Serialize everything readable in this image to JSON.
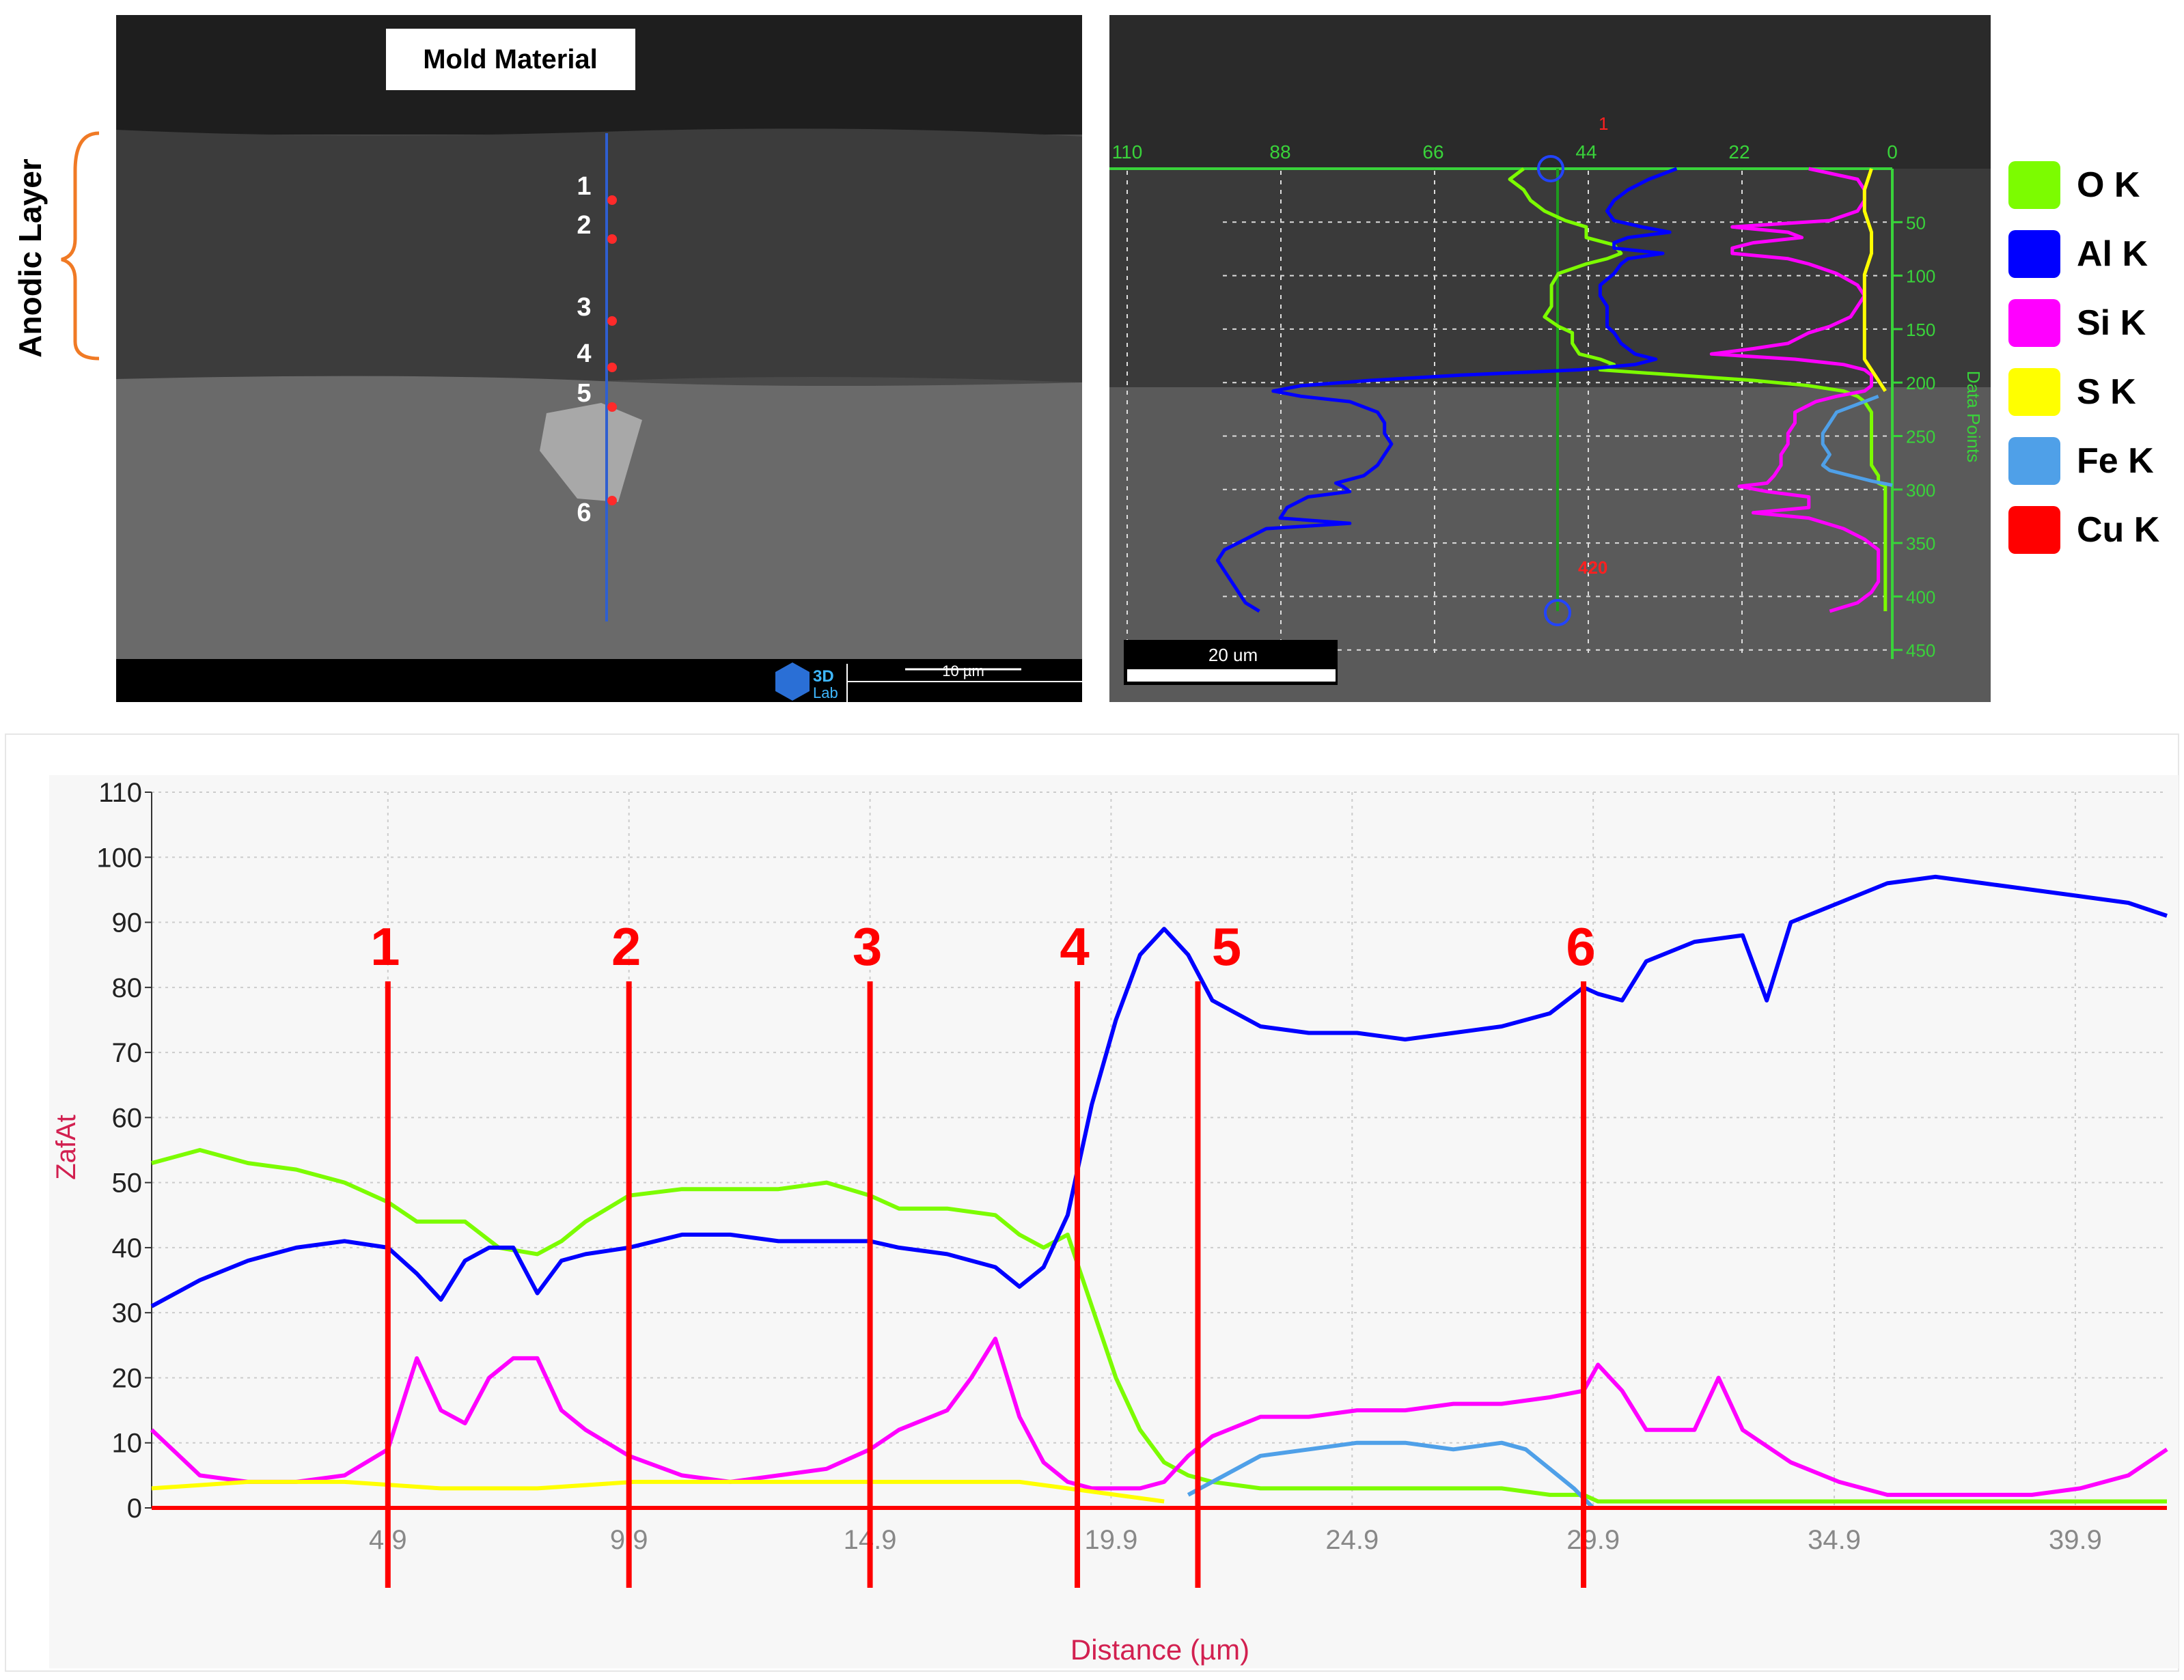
{
  "sem_panel": {
    "mold_label": "Mold Material",
    "side_label": "Anodic Layer",
    "points": [
      "1",
      "2",
      "3",
      "4",
      "5",
      "6"
    ],
    "scale_bar_label": "10 µm",
    "logo_text_top": "3D",
    "logo_text_bottom": "Lab"
  },
  "linescan_panel": {
    "top_ticks": [
      "110",
      "88",
      "66",
      "44",
      "22",
      "0"
    ],
    "right_ticks": [
      "50",
      "100",
      "150",
      "200",
      "250",
      "300",
      "350",
      "400",
      "450"
    ],
    "right_axis_label": "Data Points",
    "scale_bar_label": "20 um",
    "marker_top": "1",
    "marker_bottom": "420"
  },
  "legend": {
    "items": [
      {
        "label": "O  K",
        "color": "#7CFC00"
      },
      {
        "label": "Al K",
        "color": "#0000FF"
      },
      {
        "label": "Si K",
        "color": "#FF00FF"
      },
      {
        "label": "S  K",
        "color": "#FFFF00"
      },
      {
        "label": "Fe K",
        "color": "#4FA0E8"
      },
      {
        "label": "Cu K",
        "color": "#FF0000"
      }
    ]
  },
  "chart_data": {
    "type": "line",
    "xlabel": "Distance (µm)",
    "ylabel": "ZafAt",
    "xlim": [
      0,
      41.8
    ],
    "ylim": [
      0,
      110
    ],
    "x_ticks": [
      "4.9",
      "9.9",
      "14.9",
      "19.9",
      "24.9",
      "29.9",
      "34.9",
      "39.9"
    ],
    "y_ticks": [
      "0",
      "10",
      "20",
      "30",
      "40",
      "50",
      "60",
      "70",
      "80",
      "90",
      "100",
      "110"
    ],
    "grid": true,
    "markers": [
      {
        "label": "1",
        "x": 4.9
      },
      {
        "label": "2",
        "x": 9.9
      },
      {
        "label": "3",
        "x": 14.9
      },
      {
        "label": "4",
        "x": 19.2
      },
      {
        "label": "5",
        "x": 21.7
      },
      {
        "label": "6",
        "x": 29.7
      }
    ],
    "series": [
      {
        "name": "O  K",
        "color": "#7CFC00",
        "x": [
          0,
          1,
          2,
          3,
          4,
          4.9,
          5.5,
          6.5,
          7.2,
          8,
          8.5,
          9,
          9.9,
          11,
          12,
          13,
          14,
          14.9,
          15.5,
          16.5,
          17.5,
          18,
          18.5,
          19,
          19.5,
          20,
          20.5,
          21,
          21.5,
          22,
          23,
          24,
          25,
          26,
          27,
          28,
          29,
          29.7,
          30,
          31,
          32,
          33,
          34,
          35,
          36,
          37,
          38,
          39,
          40,
          41,
          41.8
        ],
        "values": [
          53,
          55,
          53,
          52,
          50,
          47,
          44,
          44,
          40,
          39,
          41,
          44,
          48,
          49,
          49,
          49,
          50,
          48,
          46,
          46,
          45,
          42,
          40,
          42,
          31,
          20,
          12,
          7,
          5,
          4,
          3,
          3,
          3,
          3,
          3,
          3,
          2,
          2,
          1,
          1,
          1,
          1,
          1,
          1,
          1,
          1,
          1,
          1,
          1,
          1,
          1
        ]
      },
      {
        "name": "Al K",
        "color": "#0000FF",
        "x": [
          0,
          1,
          2,
          3,
          4,
          4.9,
          5.5,
          6,
          6.5,
          7,
          7.5,
          8,
          8.5,
          9,
          9.9,
          11,
          12,
          13,
          14,
          14.9,
          15.5,
          16.5,
          17.5,
          18,
          18.5,
          19,
          19.5,
          20,
          20.5,
          21,
          21.5,
          22,
          23,
          24,
          25,
          26,
          27,
          28,
          29,
          29.7,
          30,
          30.5,
          31,
          32,
          33,
          33.5,
          34,
          35,
          36,
          37,
          38,
          39,
          40,
          41,
          41.8
        ],
        "values": [
          31,
          35,
          38,
          40,
          41,
          40,
          36,
          32,
          38,
          40,
          40,
          33,
          38,
          39,
          40,
          42,
          42,
          41,
          41,
          41,
          40,
          39,
          37,
          34,
          37,
          45,
          62,
          75,
          85,
          89,
          85,
          78,
          74,
          73,
          73,
          72,
          73,
          74,
          76,
          80,
          79,
          78,
          84,
          87,
          88,
          78,
          90,
          93,
          96,
          97,
          96,
          95,
          94,
          93,
          91
        ]
      },
      {
        "name": "Si K",
        "color": "#FF00FF",
        "x": [
          0,
          1,
          2,
          3,
          4,
          4.9,
          5.5,
          6,
          6.5,
          7,
          7.5,
          8,
          8.5,
          9,
          9.9,
          11,
          12,
          13,
          14,
          14.9,
          15.5,
          16.5,
          17,
          17.5,
          18,
          18.5,
          19,
          19.5,
          20,
          20.5,
          21,
          21.5,
          22,
          23,
          24,
          25,
          26,
          27,
          28,
          29,
          29.7,
          30,
          30.5,
          31,
          32,
          32.5,
          33,
          34,
          35,
          36,
          37,
          38,
          39,
          40,
          41,
          41.8
        ],
        "values": [
          12,
          5,
          4,
          4,
          5,
          9,
          23,
          15,
          13,
          20,
          23,
          23,
          15,
          12,
          8,
          5,
          4,
          5,
          6,
          9,
          12,
          15,
          20,
          26,
          14,
          7,
          4,
          3,
          3,
          3,
          4,
          8,
          11,
          14,
          14,
          15,
          15,
          16,
          16,
          17,
          18,
          22,
          18,
          12,
          12,
          20,
          12,
          7,
          4,
          2,
          2,
          2,
          2,
          3,
          5,
          9
        ]
      },
      {
        "name": "S  K",
        "color": "#FFFF00",
        "x": [
          0,
          2,
          4,
          6,
          8,
          10,
          12,
          14,
          16,
          18,
          19,
          20,
          21
        ],
        "values": [
          3,
          4,
          4,
          3,
          3,
          4,
          4,
          4,
          4,
          4,
          3,
          2,
          1
        ]
      },
      {
        "name": "Fe K",
        "color": "#4FA0E8",
        "x": [
          21.5,
          22,
          23,
          24,
          25,
          26,
          27,
          28,
          28.5,
          29,
          29.5,
          29.9
        ],
        "values": [
          2,
          4,
          8,
          9,
          10,
          10,
          9,
          10,
          9,
          6,
          3,
          0
        ]
      },
      {
        "name": "Cu K",
        "color": "#FF0000",
        "x": [
          0,
          41.8
        ],
        "values": [
          0,
          0
        ]
      }
    ]
  }
}
